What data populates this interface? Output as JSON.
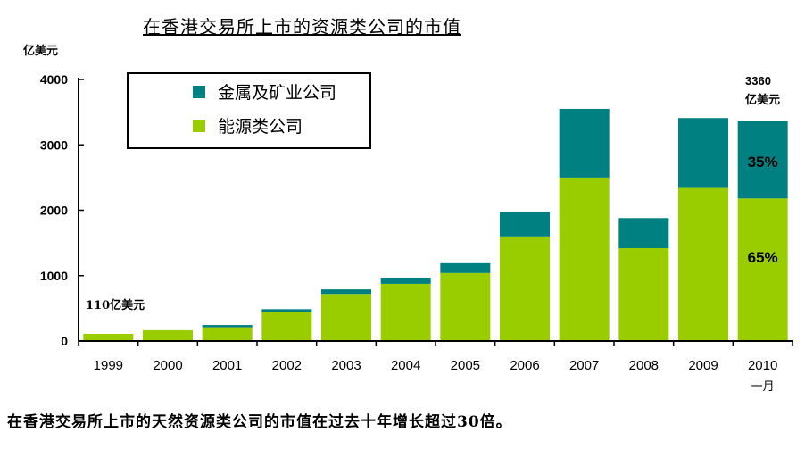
{
  "chart_data": {
    "type": "bar",
    "stacked": true,
    "title": "在香港交易所上市的资源类公司的市值",
    "ylabel": "亿美元",
    "xlabel": "",
    "ylim": [
      0,
      4000
    ],
    "yticks": [
      0,
      1000,
      2000,
      3000,
      4000
    ],
    "grid": false,
    "legend_position": "top-left",
    "categories": [
      "1999",
      "2000",
      "2001",
      "2002",
      "2003",
      "2004",
      "2005",
      "2006",
      "2007",
      "2008",
      "2009",
      "2010"
    ],
    "category_sublabel": {
      "index": 11,
      "text": "一月"
    },
    "series": [
      {
        "name": "能源类公司",
        "color": "#9ACD00",
        "values": [
          110,
          165,
          210,
          450,
          720,
          875,
          1040,
          1600,
          2500,
          1420,
          2340,
          2180
        ]
      },
      {
        "name": "金属及矿业公司",
        "color": "#008080",
        "values": [
          0,
          0,
          35,
          37,
          70,
          95,
          150,
          380,
          1050,
          460,
          1070,
          1180
        ]
      }
    ],
    "legend_order": [
      "金属及矿业公司",
      "能源类公司"
    ],
    "annotations": {
      "first": "110亿美元",
      "last_total": "3360",
      "last_unit": "亿美元",
      "last_metal_pct": "35%",
      "last_energy_pct": "65%"
    }
  },
  "footnote": "在香港交易所上市的天然资源类公司的市值在过去十年增长超过30倍。"
}
